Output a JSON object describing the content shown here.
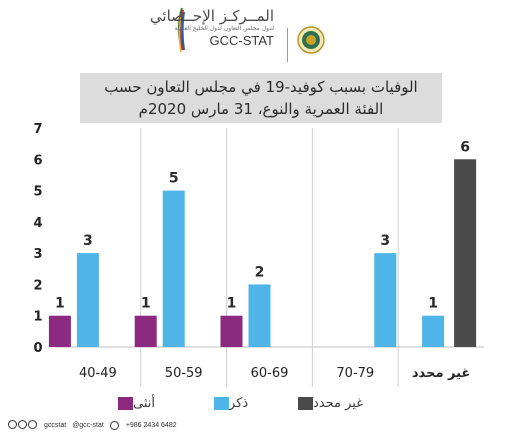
{
  "header": {
    "org_name_ar": "المــركـز الإحــصائي",
    "org_sub_ar": "لدول مجلس التعاون لدول الخليج العربية",
    "org_name_en": "GCC-STAT"
  },
  "chart_data": {
    "type": "bar",
    "title_line1": "الوفيات بسبب كوفيد-19 في مجلس التعاون حسب",
    "title_line2": "الفئة العمرية والنوع، 31 مارس 2020م",
    "categories": [
      "40-49",
      "50-59",
      "60-69",
      "70-79",
      "غير محدد"
    ],
    "series": [
      {
        "name": "أنثى",
        "values": [
          1,
          1,
          1,
          null,
          null
        ],
        "color": "#8b2a7e"
      },
      {
        "name": "ذكر",
        "values": [
          3,
          5,
          2,
          3,
          1
        ],
        "color": "#4fb4e8"
      },
      {
        "name": "غير محدد",
        "values": [
          null,
          null,
          null,
          null,
          6
        ],
        "color": "#4a4a4a"
      }
    ],
    "yticks": [
      "0",
      "1",
      "2",
      "3",
      "4",
      "5",
      "6",
      "7"
    ],
    "ylim": [
      0,
      7
    ],
    "grid": false,
    "legend_position": "bottom"
  },
  "footer": {
    "handle1": "gccstat",
    "handle2": "@gcc-stat",
    "phone": "+986 2434 6482"
  },
  "colors": {
    "female": "#8b2a7e",
    "male": "#4fb4e8",
    "unspecified": "#4a4a4a",
    "title_bg": "#dcdcdc",
    "divider": "#cfcfcf"
  },
  "icons": [
    "gcc-emblem-icon",
    "facebook-icon",
    "twitter-icon",
    "instagram-icon",
    "whatsapp-icon"
  ]
}
